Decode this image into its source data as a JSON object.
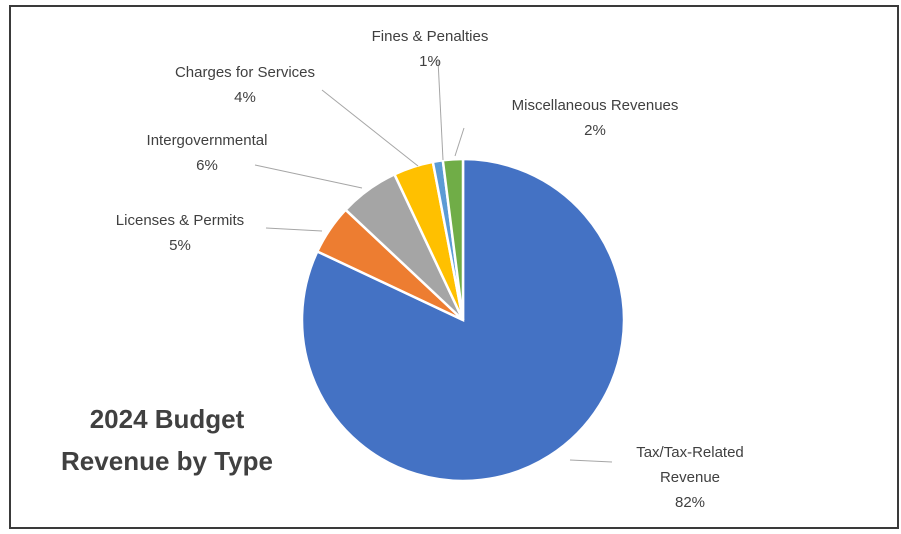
{
  "chart_data": {
    "type": "pie",
    "title": [
      "2024 Budget",
      "Revenue by Type"
    ],
    "categories": [
      "Tax/Tax-Related Revenue",
      "Licenses & Permits",
      "Intergovernmental",
      "Charges for Services",
      "Fines & Penalties",
      "Miscellaneous Revenues"
    ],
    "values": [
      82,
      5,
      6,
      4,
      1,
      2
    ],
    "value_labels": [
      "82%",
      "5%",
      "6%",
      "4%",
      "1%",
      "2%"
    ],
    "colors": [
      "#4472c4",
      "#ed7d31",
      "#a5a5a5",
      "#ffc000",
      "#5b9bd5",
      "#70ad47"
    ]
  }
}
